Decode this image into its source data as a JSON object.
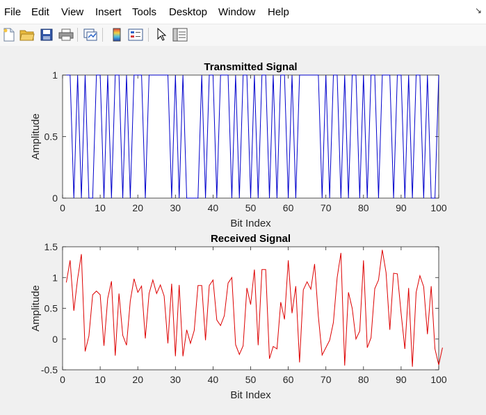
{
  "menu": {
    "items": [
      "File",
      "Edit",
      "View",
      "Insert",
      "Tools",
      "Desktop",
      "Window",
      "Help"
    ]
  },
  "toolbar": {
    "buttons": [
      "new-figure-icon",
      "open-folder-icon",
      "save-icon",
      "print-icon",
      "link-plot-icon",
      "colorbar-icon",
      "legend-icon",
      "pointer-icon",
      "property-editor-icon"
    ]
  },
  "colors": {
    "transmitted": "#0000cc",
    "received": "#dd0000"
  },
  "chart_data": [
    {
      "type": "line",
      "title": "Transmitted Signal",
      "xlabel": "Bit Index",
      "ylabel": "Amplitude",
      "xlim": [
        0,
        100
      ],
      "ylim": [
        0,
        1
      ],
      "xticks": [
        "0",
        "10",
        "20",
        "30",
        "40",
        "50",
        "60",
        "70",
        "80",
        "90",
        "100"
      ],
      "yticks": [
        "0",
        "0.5",
        "1"
      ],
      "series": [
        {
          "values": [
            1,
            1,
            0,
            1,
            0,
            1,
            0,
            0,
            1,
            1,
            0,
            1,
            0,
            1,
            1,
            0,
            1,
            0,
            1,
            1,
            1,
            0,
            1,
            1,
            1,
            1,
            1,
            1,
            0,
            1,
            0,
            1,
            0,
            0,
            0,
            0,
            1,
            0,
            1,
            1,
            0,
            1,
            1,
            1,
            0,
            1,
            0,
            1,
            1,
            0,
            1,
            0,
            1,
            1,
            0,
            1,
            0,
            1,
            1,
            0,
            1,
            0,
            1,
            1,
            1,
            1,
            1,
            1,
            0,
            1,
            0,
            1,
            1,
            0,
            1,
            0,
            1,
            1,
            0,
            1,
            0,
            1,
            1,
            0,
            1,
            1,
            1,
            0,
            1,
            1,
            0,
            1,
            0,
            1,
            1,
            0,
            1,
            0,
            0,
            1
          ]
        }
      ]
    },
    {
      "type": "line",
      "title": "Received Signal",
      "xlabel": "Bit Index",
      "ylabel": "Amplitude",
      "xlim": [
        0,
        100
      ],
      "ylim": [
        -0.5,
        1.5
      ],
      "xticks": [
        "0",
        "10",
        "20",
        "30",
        "40",
        "50",
        "60",
        "70",
        "80",
        "90",
        "100"
      ],
      "yticks": [
        "-0.5",
        "0",
        "0.5",
        "1",
        "1.5"
      ],
      "series": [
        {
          "values": [
            0.92,
            1.28,
            0.46,
            0.98,
            1.38,
            -0.2,
            0.05,
            0.72,
            0.78,
            0.72,
            -0.11,
            0.66,
            0.94,
            -0.27,
            0.74,
            0.06,
            -0.1,
            0.62,
            0.98,
            0.76,
            0.86,
            0.01,
            0.74,
            0.96,
            0.74,
            0.88,
            0.7,
            -0.07,
            0.9,
            -0.28,
            0.88,
            -0.28,
            0.15,
            -0.07,
            0.14,
            0.87,
            0.87,
            -0.02,
            0.87,
            0.96,
            0.31,
            0.22,
            0.38,
            0.91,
            1.0,
            -0.09,
            -0.25,
            -0.11,
            0.83,
            0.56,
            1.13,
            -0.1,
            1.13,
            1.13,
            -0.32,
            -0.12,
            -0.16,
            0.6,
            0.32,
            1.28,
            0.42,
            0.86,
            -0.38,
            0.8,
            0.93,
            0.81,
            1.22,
            0.37,
            -0.26,
            -0.14,
            -0.02,
            0.27,
            1.0,
            1.4,
            -0.43,
            0.76,
            0.5,
            0.0,
            0.13,
            1.28,
            -0.14,
            0.02,
            0.82,
            0.96,
            1.45,
            1.08,
            0.15,
            1.07,
            1.06,
            0.42,
            -0.16,
            0.83,
            -0.45,
            0.76,
            1.03,
            0.85,
            0.08,
            0.86,
            -0.16,
            -0.42,
            -0.14
          ]
        }
      ]
    }
  ]
}
